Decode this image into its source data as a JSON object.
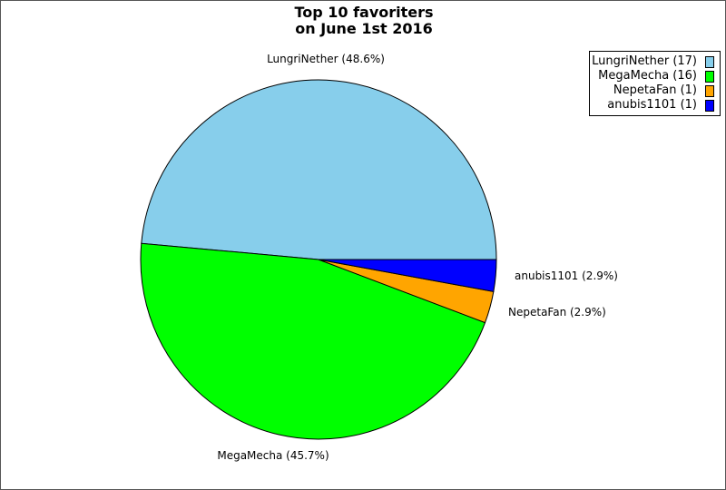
{
  "title_lines": [
    "Top 10 favoriters",
    "on June 1st 2016"
  ],
  "chart_data": {
    "type": "pie",
    "title": "Top 10 favoriters on June 1st 2016",
    "slices": [
      {
        "name": "LungriNether",
        "value": 17,
        "percent_label": "LungriNether (48.6%)",
        "legend_label": "LungriNether (17)",
        "color": "#87ceeb"
      },
      {
        "name": "MegaMecha",
        "value": 16,
        "percent_label": "MegaMecha (45.7%)",
        "legend_label": "MegaMecha (16)",
        "color": "#00ff00"
      },
      {
        "name": "NepetaFan",
        "value": 1,
        "percent_label": "NepetaFan (2.9%)",
        "legend_label": "NepetaFan (1)",
        "color": "#ffa500"
      },
      {
        "name": "anubis1101",
        "value": 1,
        "percent_label": "anubis1101 (2.9%)",
        "legend_label": "anubis1101 (1)",
        "color": "#0000ff"
      }
    ],
    "legend_position": "top-right",
    "slice_order": "counter-clockwise starting at 3 o'clock"
  }
}
